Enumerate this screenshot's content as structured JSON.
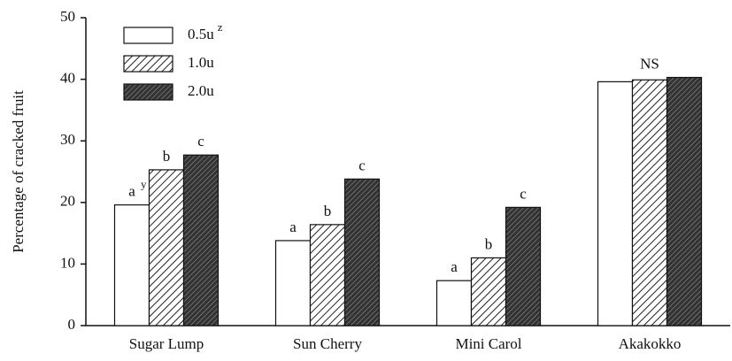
{
  "chart_data": {
    "type": "bar",
    "y_label": "Percentage of cracked fruit",
    "categories": [
      "Sugar Lump",
      "Sun Cherry",
      "Mini Carol",
      "Akakokko"
    ],
    "series": [
      {
        "name": "0.5u",
        "color": "#ffffff",
        "pattern": "solid",
        "values": [
          19.6,
          13.8,
          7.3,
          39.6
        ],
        "letters": [
          "a",
          "a",
          "a",
          null
        ]
      },
      {
        "name": "1.0u",
        "color": "#ffffff",
        "pattern": "hatch",
        "values": [
          25.3,
          16.4,
          11.0,
          39.9
        ],
        "letters": [
          "b",
          "b",
          "b",
          null
        ]
      },
      {
        "name": "2.0u",
        "color": "#333333",
        "pattern": "crosshatch",
        "values": [
          27.7,
          23.8,
          19.2,
          40.3
        ],
        "letters": [
          "c",
          "c",
          "c",
          null
        ]
      }
    ],
    "group_note": "NS",
    "letter_note": "y",
    "legend_note": "z",
    "ylim": [
      0,
      50
    ],
    "yticks": [
      0,
      10,
      20,
      30,
      40,
      50
    ]
  }
}
